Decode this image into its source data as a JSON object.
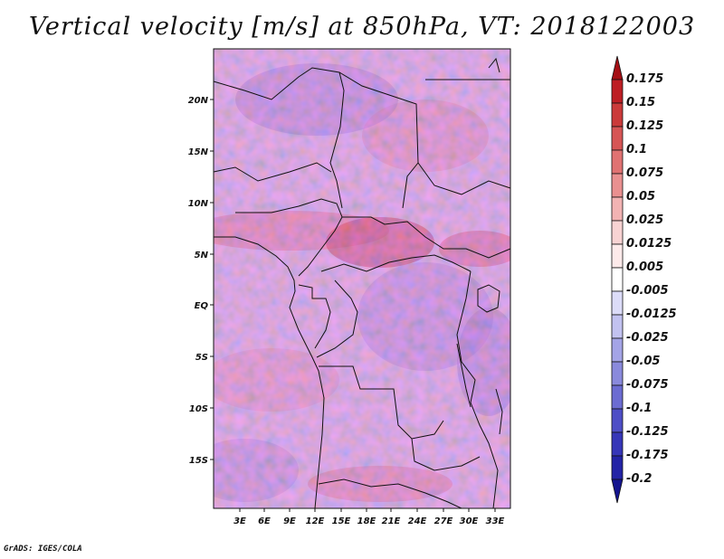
{
  "title": "Vertical velocity [m/s] at 850hPa, VT: 2018122003",
  "footer": "GrADS: IGES/COLA",
  "lat_labels": [
    "20N",
    "15N",
    "10N",
    "5N",
    "EQ",
    "5S",
    "10S",
    "15S"
  ],
  "lon_labels": [
    "3E",
    "6E",
    "9E",
    "12E",
    "15E",
    "18E",
    "21E",
    "24E",
    "27E",
    "30E",
    "33E"
  ],
  "colorbar": {
    "levels": [
      "0.175",
      "0.15",
      "0.125",
      "0.1",
      "0.075",
      "0.05",
      "0.025",
      "0.0125",
      "0.005",
      "-0.005",
      "-0.0125",
      "-0.025",
      "-0.05",
      "-0.075",
      "-0.1",
      "-0.125",
      "-0.175",
      "-0.2"
    ],
    "colors": [
      "#a50f15",
      "#bd1e24",
      "#cb3a3a",
      "#d65555",
      "#e07272",
      "#e99090",
      "#f2b3b3",
      "#f8d3d3",
      "#fdeaea",
      "#ffffff",
      "#dcdcf8",
      "#c2c2f0",
      "#a4a4e6",
      "#8a8adc",
      "#6c6cd2",
      "#4e4ec6",
      "#3636b8",
      "#2323a6",
      "#14148f"
    ]
  },
  "chart_data": {
    "type": "heatmap",
    "title": "Vertical velocity [m/s] at 850hPa, VT: 2018122003",
    "variable": "vertical velocity",
    "units": "m/s",
    "level": "850hPa",
    "valid_time": "2018122003",
    "lon_range": [
      0,
      34.5
    ],
    "lat_range": [
      -20,
      25
    ],
    "x_ticks": [
      "3E",
      "6E",
      "9E",
      "12E",
      "15E",
      "18E",
      "21E",
      "24E",
      "27E",
      "30E",
      "33E"
    ],
    "y_ticks": [
      "20N",
      "15N",
      "10N",
      "5N",
      "EQ",
      "5S",
      "10S",
      "15S"
    ],
    "contour_levels": [
      -0.2,
      -0.175,
      -0.125,
      -0.1,
      -0.075,
      -0.05,
      -0.025,
      -0.0125,
      -0.005,
      0.005,
      0.0125,
      0.025,
      0.05,
      0.075,
      0.1,
      0.125,
      0.15,
      0.175
    ]
  }
}
